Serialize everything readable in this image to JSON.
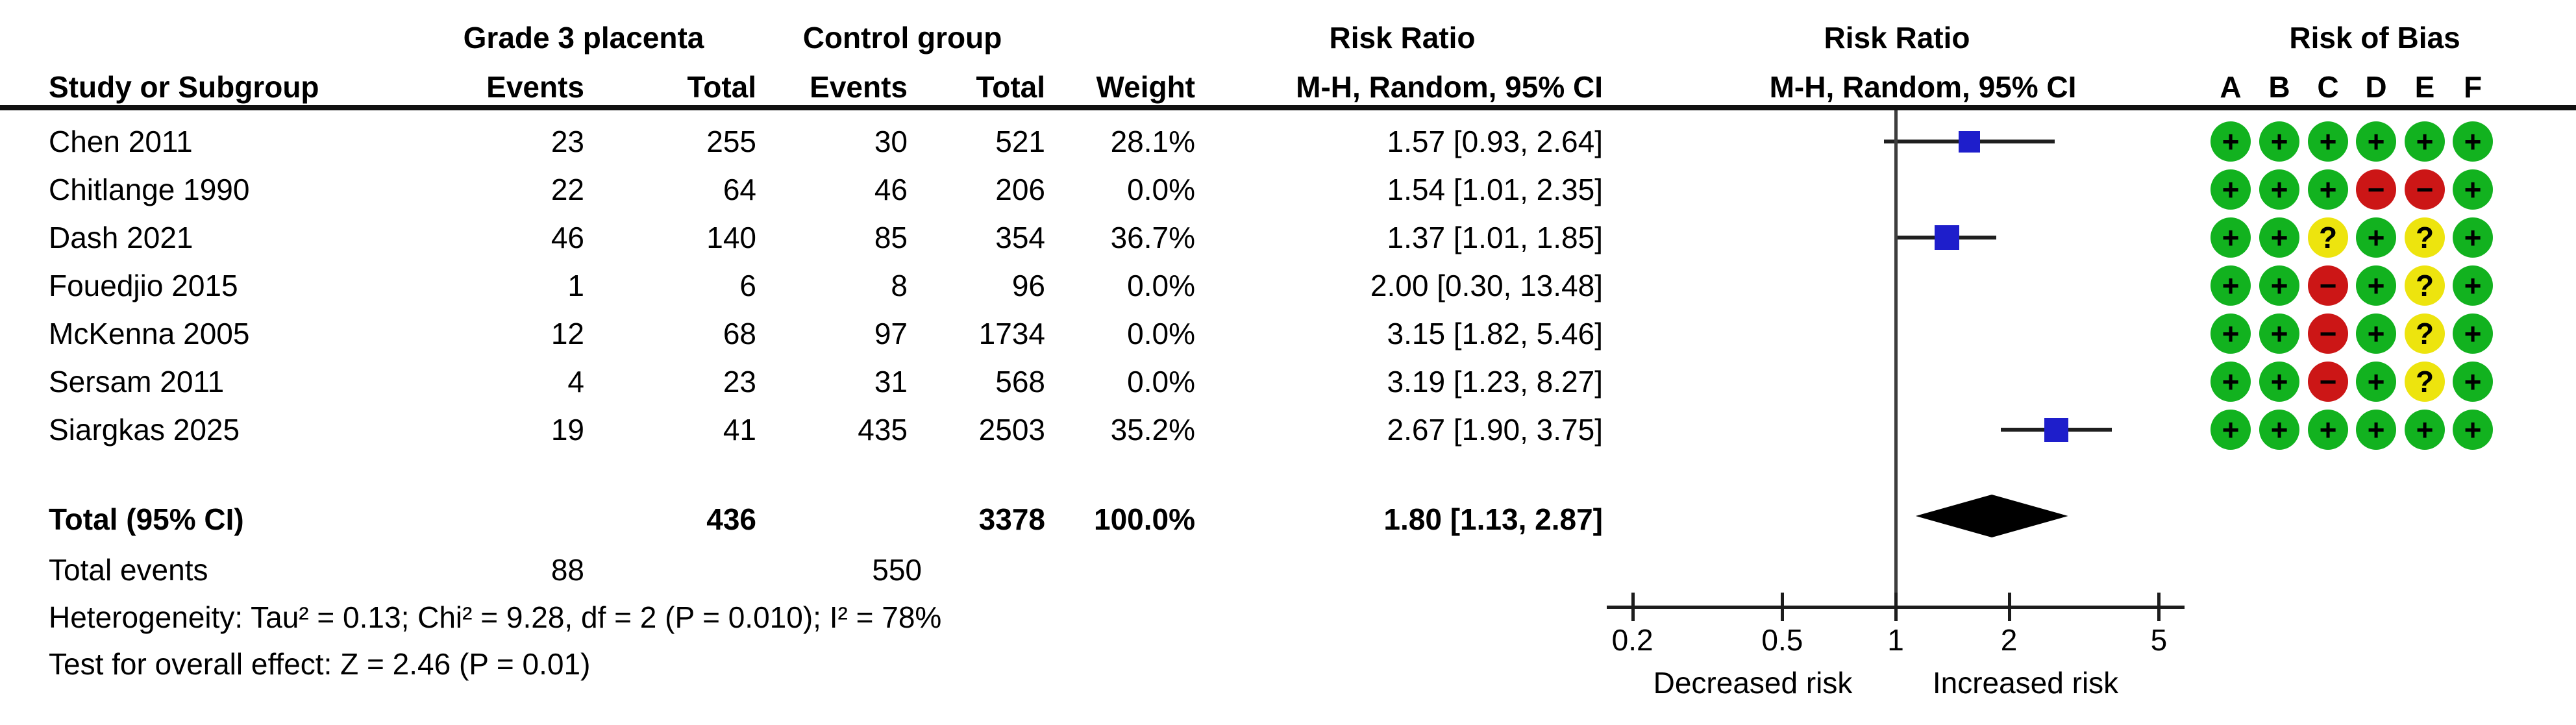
{
  "table": {
    "group1_header": "Grade 3 placenta",
    "group2_header": "Control group",
    "col_study": "Study or Subgroup",
    "col_events": "Events",
    "col_total": "Total",
    "col_weight": "Weight",
    "rr_header": "Risk Ratio",
    "rr_subheader": "M-H, Random, 95% CI",
    "plot_header": "Risk Ratio",
    "plot_subheader": "M-H, Random, 95% CI",
    "rob_header": "Risk of Bias",
    "rob_letters": [
      "A",
      "B",
      "C",
      "D",
      "E",
      "F"
    ]
  },
  "chart_data": {
    "type": "forest",
    "x_scale": "log",
    "effect_measure": "Risk Ratio (M-H, Random, 95% CI)",
    "axis_ticks": [
      0.2,
      0.5,
      1,
      2,
      5
    ],
    "axis_label_left": "Decreased risk",
    "axis_label_right": "Increased risk",
    "rows": [
      {
        "study": "Chen 2011",
        "events1": "23",
        "total1": "255",
        "events2": "30",
        "total2": "521",
        "weight": "28.1%",
        "rr_text": "1.57 [0.93, 2.64]",
        "rr": 1.57,
        "lo": 0.93,
        "hi": 2.64,
        "weight_pct": 28.1,
        "rob": [
          "L",
          "L",
          "L",
          "L",
          "L",
          "L"
        ]
      },
      {
        "study": "Chitlange 1990",
        "events1": "22",
        "total1": "64",
        "events2": "46",
        "total2": "206",
        "weight": "0.0%",
        "rr_text": "1.54 [1.01, 2.35]",
        "rr": 1.54,
        "lo": 1.01,
        "hi": 2.35,
        "weight_pct": 0,
        "rob": [
          "L",
          "L",
          "L",
          "H",
          "H",
          "L"
        ]
      },
      {
        "study": "Dash 2021",
        "events1": "46",
        "total1": "140",
        "events2": "85",
        "total2": "354",
        "weight": "36.7%",
        "rr_text": "1.37 [1.01, 1.85]",
        "rr": 1.37,
        "lo": 1.01,
        "hi": 1.85,
        "weight_pct": 36.7,
        "rob": [
          "L",
          "L",
          "U",
          "L",
          "U",
          "L"
        ]
      },
      {
        "study": "Fouedjio 2015",
        "events1": "1",
        "total1": "6",
        "events2": "8",
        "total2": "96",
        "weight": "0.0%",
        "rr_text": "2.00 [0.30, 13.48]",
        "rr": 2.0,
        "lo": 0.3,
        "hi": 13.48,
        "weight_pct": 0,
        "rob": [
          "L",
          "L",
          "H",
          "L",
          "U",
          "L"
        ]
      },
      {
        "study": "McKenna 2005",
        "events1": "12",
        "total1": "68",
        "events2": "97",
        "total2": "1734",
        "weight": "0.0%",
        "rr_text": "3.15 [1.82, 5.46]",
        "rr": 3.15,
        "lo": 1.82,
        "hi": 5.46,
        "weight_pct": 0,
        "rob": [
          "L",
          "L",
          "H",
          "L",
          "U",
          "L"
        ]
      },
      {
        "study": "Sersam 2011",
        "events1": "4",
        "total1": "23",
        "events2": "31",
        "total2": "568",
        "weight": "0.0%",
        "rr_text": "3.19 [1.23, 8.27]",
        "rr": 3.19,
        "lo": 1.23,
        "hi": 8.27,
        "weight_pct": 0,
        "rob": [
          "L",
          "L",
          "H",
          "L",
          "U",
          "L"
        ]
      },
      {
        "study": "Siargkas 2025",
        "events1": "19",
        "total1": "41",
        "events2": "435",
        "total2": "2503",
        "weight": "35.2%",
        "rr_text": "2.67 [1.90, 3.75]",
        "rr": 2.67,
        "lo": 1.9,
        "hi": 3.75,
        "weight_pct": 35.2,
        "rob": [
          "L",
          "L",
          "L",
          "L",
          "L",
          "L"
        ]
      }
    ],
    "total": {
      "label": "Total (95% CI)",
      "total1": "436",
      "total2": "3378",
      "weight": "100.0%",
      "rr_text": "1.80 [1.13, 2.87]",
      "rr": 1.8,
      "lo": 1.13,
      "hi": 2.87
    },
    "total_events": {
      "label": "Total events",
      "events1": "88",
      "events2": "550"
    },
    "footnotes": [
      "Heterogeneity: Tau² = 0.13; Chi² = 9.28, df = 2 (P = 0.010); I² = 78%",
      "Test for overall effect: Z = 2.46 (P = 0.01)"
    ],
    "rob_symbols": {
      "L": "+",
      "H": "−",
      "U": "?"
    }
  },
  "colors": {
    "marker_blue": "#1E1ECB",
    "diamond": "#000000",
    "rob_low": "#12B21F",
    "rob_high": "#CC1616",
    "rob_unclear": "#EDE40E"
  }
}
